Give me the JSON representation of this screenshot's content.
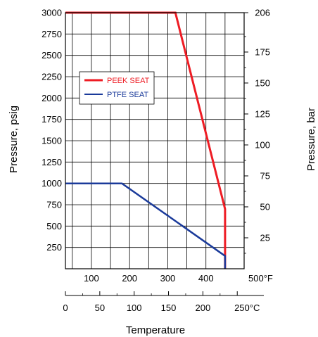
{
  "chart_data": {
    "type": "line",
    "left_axis": {
      "label": "Pressure, psig",
      "ticks": [
        250,
        500,
        750,
        1000,
        1250,
        1500,
        1750,
        2000,
        2250,
        2500,
        2750,
        3000
      ],
      "tick_labels": [
        "250",
        "500",
        "750",
        "1000",
        "1250",
        "1500",
        "1750",
        "2000",
        "2250",
        "2500",
        "2750",
        "3000"
      ],
      "range": [
        0,
        3000
      ]
    },
    "right_axis": {
      "label": "Pressure, bar",
      "ticks": [
        25,
        50,
        75,
        100,
        125,
        150,
        175,
        206
      ],
      "tick_labels": [
        "25",
        "50",
        "75",
        "100",
        "125",
        "150",
        "175",
        "206"
      ],
      "range": [
        0,
        206.8
      ]
    },
    "x_axis_f": {
      "ticks": [
        100,
        200,
        300,
        400,
        500
      ],
      "tick_labels": [
        "100",
        "200",
        "300",
        "400",
        "500°F"
      ],
      "range": [
        32,
        500
      ]
    },
    "x_axis_c": {
      "ticks": [
        0,
        50,
        100,
        150,
        200,
        250
      ],
      "tick_labels": [
        "0",
        "50",
        "100",
        "150",
        "200",
        "250°C"
      ],
      "range": [
        0,
        260
      ]
    },
    "xlabel": "Temperature",
    "grid": true,
    "legend_position": "upper-left",
    "series": [
      {
        "name": "PEEK SEAT",
        "color": "#ee1c24",
        "points": [
          [
            32,
            3000
          ],
          [
            320,
            3000
          ],
          [
            450,
            700
          ],
          [
            450,
            0
          ]
        ]
      },
      {
        "name": "PTFE SEAT",
        "color": "#1a3a9a",
        "points": [
          [
            32,
            1000
          ],
          [
            180,
            1000
          ],
          [
            450,
            150
          ],
          [
            450,
            0
          ]
        ]
      }
    ]
  }
}
